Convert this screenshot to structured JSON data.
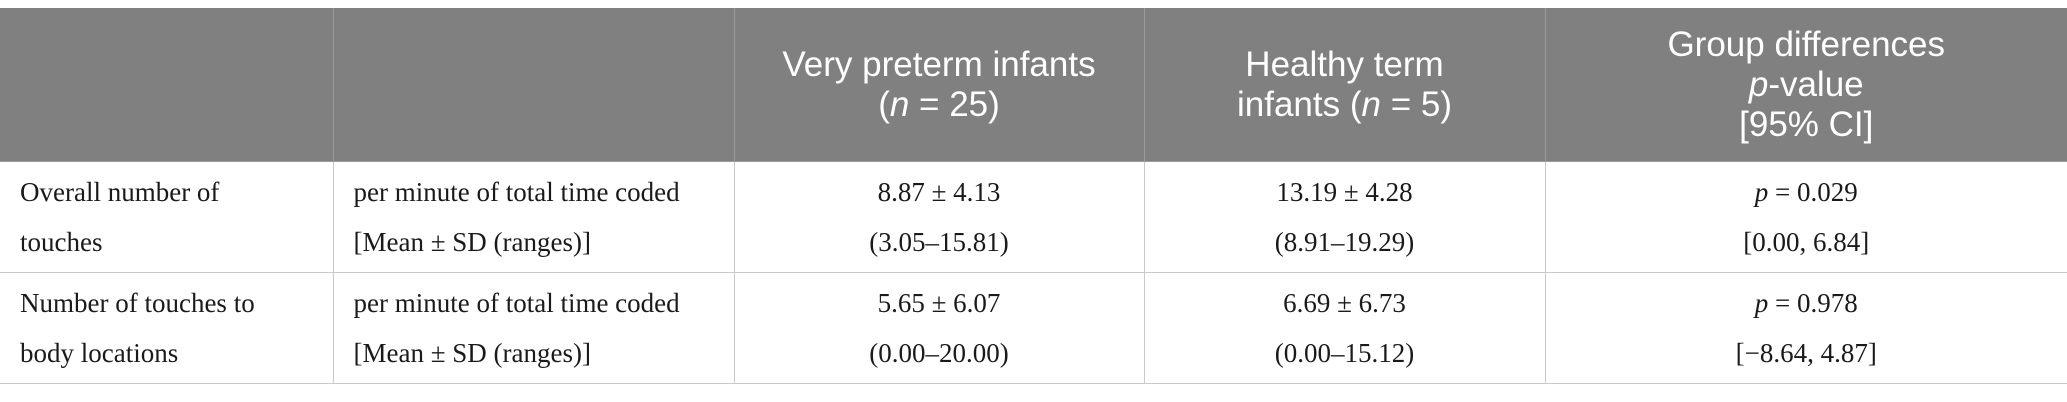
{
  "header": {
    "col3": {
      "line1": "Very preterm infants",
      "line2_pre": "(",
      "line2_n": "n",
      "line2_post": " = 25)"
    },
    "col4": {
      "line1": "Healthy term",
      "line2_pre": "infants (",
      "line2_n": "n",
      "line2_post": " = 5)"
    },
    "col5": {
      "line1": "Group differences",
      "line2_p": "p",
      "line2_post": "-value",
      "line3": "[95% CI]"
    }
  },
  "rows": [
    {
      "label1": "Overall number of",
      "label2": "touches",
      "metric1": "per minute of total time coded",
      "metric2": "[Mean ± SD (ranges)]",
      "preterm_mean": "8.87 ± 4.13",
      "preterm_range": "(3.05–15.81)",
      "term_mean": "13.19 ± 4.28",
      "term_range": "(8.91–19.29)",
      "p_label": "p",
      "p_value": " = 0.029",
      "ci": "[0.00, 6.84]"
    },
    {
      "label1": "Number of touches to",
      "label2": "body locations",
      "metric1": "per minute of total time coded",
      "metric2": "[Mean ± SD (ranges)]",
      "preterm_mean": "5.65 ± 6.07",
      "preterm_range": "(0.00–20.00)",
      "term_mean": "6.69 ± 6.73",
      "term_range": "(0.00–15.12)",
      "p_label": "p",
      "p_value": " = 0.978",
      "ci": "[−8.64, 4.87]"
    }
  ]
}
